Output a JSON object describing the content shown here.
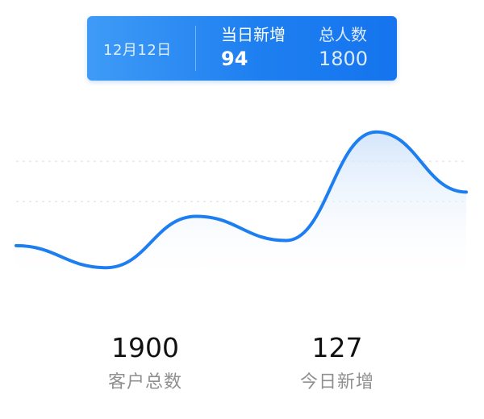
{
  "chart_data": {
    "type": "area",
    "series": [
      {
        "values": [
          0.55,
          0.25,
          0.95,
          0.62,
          2.1,
          1.28
        ]
      }
    ],
    "x": [
      0,
      1,
      2,
      3,
      4,
      5
    ],
    "ylim": [
      0,
      2.8
    ],
    "grid": true,
    "highlight_index": 3,
    "line_color": "#1c7ef0",
    "fill_color": "#dcebfb"
  },
  "tooltip": {
    "date": "12月12日",
    "new_label": "当日新增",
    "new_value": "94",
    "total_label": "总人数",
    "total_value": "1800"
  },
  "stats": [
    {
      "value": "1900",
      "label": "客户总数"
    },
    {
      "value": "127",
      "label": "今日新增"
    }
  ]
}
